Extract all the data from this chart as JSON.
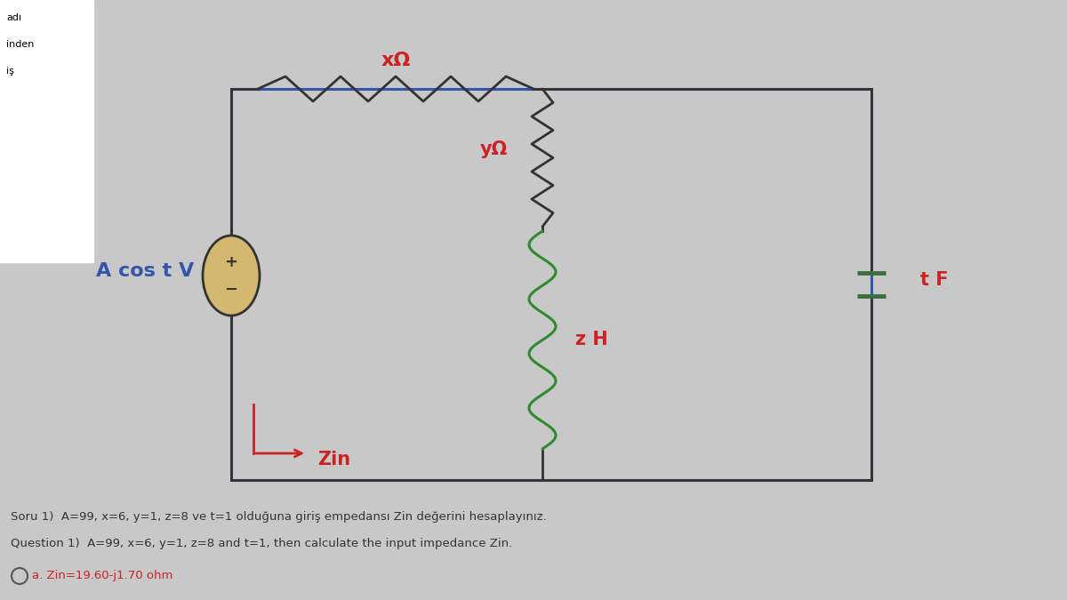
{
  "bg_color": "#c8c8c8",
  "circuit_bg": "#d8d8d8",
  "title_x": "xΩ",
  "title_y": "yΩ",
  "label_A": "A cos t V",
  "label_zH": "z H",
  "label_tF": "t F",
  "label_Zin": "Zin",
  "question_line1": "Soru 1)  A=99, x=6, y=1, z=8 ve t=1 olduğuna giriş empedansı Zin değerini hesaplayınız.",
  "question_line2": "Question 1)  A=99, x=6, y=1, z=8 and t=1, then calculate the input impedance Zin.",
  "answer_line": "a. Zin=19.60-j1.70 ohm",
  "left_label1": "adı",
  "left_label2": "inden",
  "left_label3": "iş",
  "color_red": "#cc2222",
  "color_dark": "#333333",
  "color_green": "#2e8b2e",
  "color_orange": "#8b6914",
  "color_blue": "#3355aa",
  "color_src_face": "#d4b870",
  "color_cap": "#3a6e3a"
}
